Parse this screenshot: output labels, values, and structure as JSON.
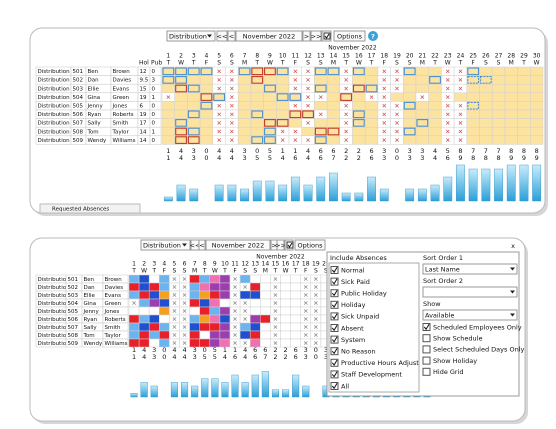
{
  "toolbar": {
    "view": "Distribution",
    "first": "<<",
    "prev": "<",
    "month": "November 2022",
    "next": ">",
    "last": ">>",
    "options": "Options",
    "help": "?"
  },
  "close": "x",
  "tab": "Requested Absences",
  "schedule": {
    "month": "November 2022",
    "days": [
      1,
      2,
      3,
      4,
      5,
      6,
      7,
      8,
      9,
      10,
      11,
      12,
      13,
      14,
      15,
      16,
      17,
      18,
      19,
      20,
      21,
      22,
      23,
      24,
      25,
      26,
      27,
      28,
      29,
      30
    ],
    "weekdays": [
      "T",
      "W",
      "T",
      "F",
      "S",
      "S",
      "M",
      "T",
      "W",
      "T",
      "F",
      "S",
      "S",
      "M",
      "T",
      "W",
      "T",
      "F",
      "S",
      "S",
      "M",
      "T",
      "W",
      "T",
      "F",
      "S",
      "S",
      "M",
      "T",
      "W"
    ],
    "hol_header": "Hol",
    "pub_header": "Pub",
    "employees": [
      {
        "dept": "Distribution",
        "id": "501",
        "first": "Ben",
        "last": "Brown",
        "hol": 12,
        "pub": 0,
        "cells_top": "bbbbxxbrrbxxbbxbyxxbyyxxbyyyyy",
        "cells_bottom": "lbwlxxrlkpxlwwxwwxxwwwxxwwwwww"
      },
      {
        "dept": "Distribution",
        "id": "502",
        "first": "Dan",
        "last": "Davies",
        "hol": 9.5,
        "pub": 3,
        "cells_top": "bbyyxxyryyxxyyxyyxxyybxxddyyyy",
        "cells_bottom": "rbrlxxlkppxxrwxwwxxwwwxxwwwwww"
      },
      {
        "dept": "Distribution",
        "id": "503",
        "first": "Ellie",
        "last": "Evans",
        "hol": 15,
        "pub": 0,
        "cells_top": "yrbyxxyybyxxbyxrbxxyyyxxyyyyyy",
        "cells_bottom": "lrboxxlorpxbbwxwwxxwwwxxwwwwww"
      },
      {
        "dept": "Distribution",
        "id": "504",
        "first": "Gina",
        "last": "Green",
        "hol": 19,
        "pub": 1,
        "cells_top": "xyyrbxyyybbxxyryxxyyxyxyyyyyyy",
        "cells_bottom": "xlpbxxrbkwxxwwxwwxxwwwxxwwwwww"
      },
      {
        "dept": "Distribution",
        "id": "505",
        "first": "Jenny",
        "last": "Jones",
        "hol": 6,
        "pub": 0,
        "cells_top": "yyybxxyyyyxxyyxyyxxbyyxxdyyyyy",
        "cells_bottom": "wwwoxxwrlpxxwwxwwxxwwwxxwwwwww"
      },
      {
        "dept": "Distribution",
        "id": "506",
        "first": "Ryan",
        "last": "Roberts",
        "hol": 19,
        "pub": 0,
        "cells_top": "yybyxxybyyrrxyxbyxxyyyxxyyyyyy",
        "cells_bottom": "rlbwxxlokbxxprxwwxxwwwxxwwwwww"
      },
      {
        "dept": "Distribution",
        "id": "507",
        "first": "Sally",
        "last": "Smith",
        "hol": 17,
        "pub": 0,
        "cells_top": "ybyyxxyyrryxyyxbyxxybyxxyyyyyy",
        "cells_bottom": "lbrlxxbrrpxlbwxwwxxwwwxxwwwwww"
      },
      {
        "dept": "Distribution",
        "id": "508",
        "first": "Tom",
        "last": "Taylor",
        "hol": 14,
        "pub": 1,
        "cells_top": "yrbyxxyybxxyrrxyyxxbyyxxyyyyyy",
        "cells_bottom": "lrlrxxrwppxbrwxwwxxwwwxxwwwwww"
      },
      {
        "dept": "Distribution",
        "id": "509",
        "first": "Wendy",
        "last": "Williams",
        "hol": 14,
        "pub": 0,
        "cells_top": "yrryxxybbxxxbyxyyxxyyyxxyyyyyy",
        "cells_bottom": "rrwlxxrrpkxxkwxwwxxwwwxxwwwwww"
      }
    ],
    "totals_a": [
      1,
      4,
      3,
      0,
      4,
      4,
      3,
      0,
      5,
      1,
      1,
      4,
      6,
      6,
      2,
      2,
      6,
      3,
      0,
      3,
      3,
      4,
      5,
      8,
      7,
      7,
      7,
      8,
      8,
      8
    ],
    "totals_b": [
      1,
      4,
      3,
      0,
      4,
      4,
      3,
      5,
      5,
      4,
      6,
      4,
      6,
      7,
      2,
      2,
      6,
      3,
      0,
      3,
      3,
      4,
      6,
      9,
      8,
      8,
      8,
      9,
      9,
      9
    ]
  },
  "options_dialog": {
    "absences_title": "Include Absences",
    "absences": [
      {
        "label": "Normal",
        "checked": true
      },
      {
        "label": "Sick Paid",
        "checked": true
      },
      {
        "label": "Public Holiday",
        "checked": true
      },
      {
        "label": "Holiday",
        "checked": true
      },
      {
        "label": "Sick Unpaid",
        "checked": true
      },
      {
        "label": "Absent",
        "checked": true
      },
      {
        "label": "System",
        "checked": true
      },
      {
        "label": "No Reason",
        "checked": true
      },
      {
        "label": "Productive Hours Adjust",
        "checked": true
      },
      {
        "label": "Staff Development",
        "checked": true
      },
      {
        "label": "All",
        "checked": true
      }
    ],
    "sort1_label": "Sort Order 1",
    "sort1_value": "Last Name",
    "sort2_label": "Sort Order 2",
    "show_label": "Show",
    "show_value": "Available",
    "flags": [
      {
        "label": "Scheduled Employees Only",
        "checked": true
      },
      {
        "label": "Show Schedule",
        "checked": false
      },
      {
        "label": "Select Scheduled Days Only",
        "checked": false
      },
      {
        "label": "Show Holiday",
        "checked": false
      },
      {
        "label": "Hide Grid",
        "checked": false
      }
    ]
  }
}
